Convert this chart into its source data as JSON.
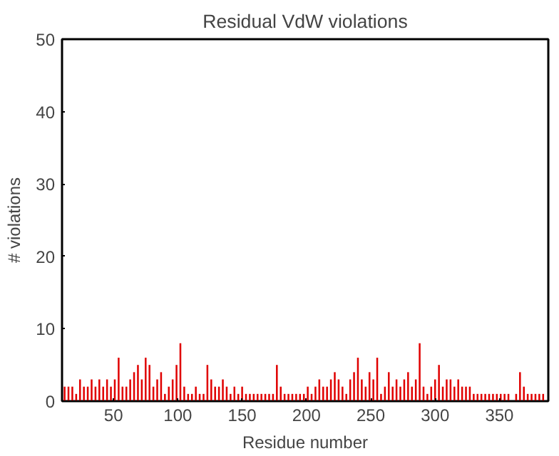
{
  "chart_data": {
    "type": "bar",
    "title": "Residual VdW violations",
    "xlabel": "Residue number",
    "ylabel": "# violations",
    "xlim": [
      10,
      388
    ],
    "ylim": [
      0,
      50
    ],
    "xticks": [
      50,
      100,
      150,
      200,
      250,
      300,
      350
    ],
    "yticks": [
      0,
      10,
      20,
      30,
      40,
      50
    ],
    "grid": false,
    "x": [
      12,
      15,
      18,
      21,
      24,
      27,
      30,
      33,
      36,
      39,
      42,
      45,
      48,
      51,
      54,
      57,
      60,
      63,
      66,
      69,
      72,
      75,
      78,
      81,
      84,
      87,
      90,
      93,
      96,
      99,
      102,
      105,
      108,
      111,
      114,
      117,
      120,
      123,
      126,
      129,
      132,
      135,
      138,
      141,
      144,
      147,
      150,
      153,
      156,
      159,
      162,
      165,
      168,
      171,
      174,
      177,
      180,
      183,
      186,
      189,
      192,
      195,
      198,
      201,
      204,
      207,
      210,
      213,
      216,
      219,
      222,
      225,
      228,
      231,
      234,
      237,
      240,
      243,
      246,
      249,
      252,
      255,
      258,
      261,
      264,
      267,
      270,
      273,
      276,
      279,
      282,
      285,
      288,
      291,
      294,
      297,
      300,
      303,
      306,
      309,
      312,
      315,
      318,
      321,
      324,
      327,
      330,
      333,
      336,
      339,
      342,
      345,
      348,
      351,
      354,
      357,
      360,
      363,
      366,
      369,
      372,
      375,
      378,
      381,
      384
    ],
    "series": [
      {
        "color": "#e00000",
        "values": [
          2,
          2,
          2,
          1,
          3,
          2,
          2,
          3,
          2,
          3,
          2,
          3,
          2,
          3,
          6,
          2,
          2,
          3,
          4,
          5,
          3,
          6,
          5,
          2,
          3,
          4,
          1,
          2,
          3,
          5,
          8,
          2,
          1,
          1,
          2,
          1,
          1,
          5,
          3,
          2,
          2,
          3,
          2,
          1,
          2,
          1,
          2,
          1,
          1,
          1,
          1,
          1,
          1,
          1,
          1,
          5,
          2,
          1,
          1,
          1,
          1,
          1,
          1,
          2,
          1,
          2,
          3,
          2,
          2,
          3,
          4,
          3,
          2,
          1,
          3,
          4,
          6,
          3,
          2,
          4,
          3,
          6,
          1,
          2,
          4,
          2,
          3,
          2,
          3,
          4,
          2,
          3,
          8,
          2,
          1,
          2,
          3,
          5,
          2,
          3,
          3,
          2,
          3,
          2,
          2,
          2,
          1,
          1,
          1,
          1,
          1,
          1,
          1,
          1,
          1,
          1,
          0,
          1,
          4,
          2,
          1,
          1,
          1,
          1,
          1
        ]
      }
    ]
  }
}
